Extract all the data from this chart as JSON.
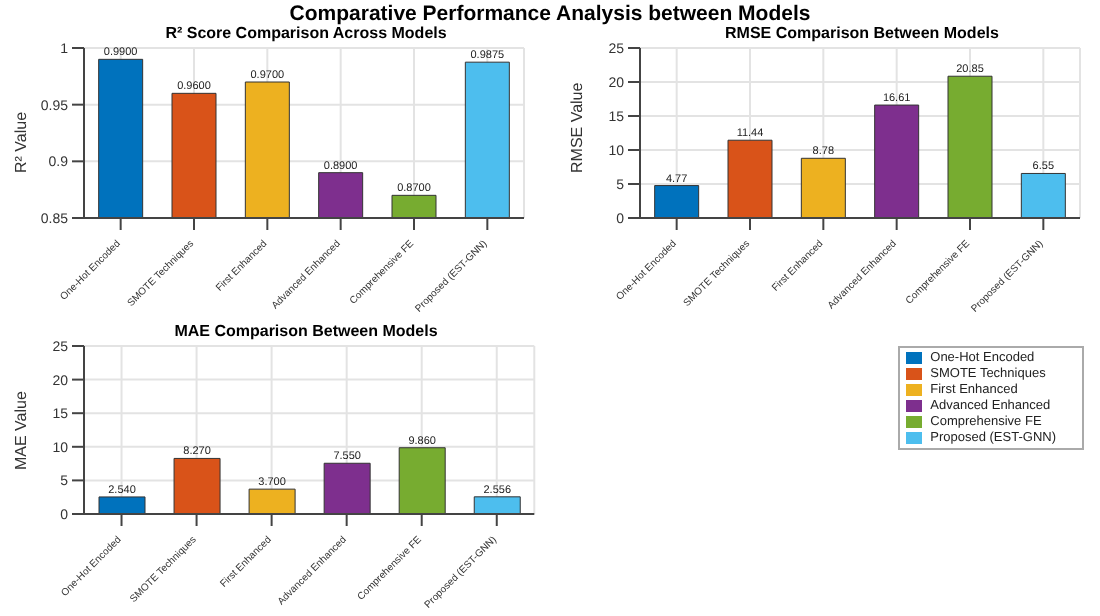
{
  "chart_data": [
    {
      "type": "bar",
      "title": "R² Score Comparison Across Models",
      "ylabel": "R² Value",
      "annotations": [
        "Comparative Performance Analysis between Models"
      ],
      "categories": [
        "One-Hot Encoded",
        "SMOTE Techniques",
        "First Enhanced",
        "Advanced Enhanced",
        "Comprehensive FE",
        "Proposed (EST-GNN)"
      ],
      "values": [
        0.99,
        0.96,
        0.97,
        0.89,
        0.87,
        0.9875
      ],
      "value_labels": [
        "0.9900",
        "0.9600",
        "0.9700",
        "0.8900",
        "0.8700",
        "0.9875"
      ],
      "colors": [
        "#0072bd",
        "#d95319",
        "#edb120",
        "#7e2f8e",
        "#77ac30",
        "#4dbeee"
      ],
      "ylim": [
        0.85,
        1
      ],
      "yticks": [
        0.85,
        0.9,
        0.95,
        1
      ],
      "grid": true
    },
    {
      "type": "bar",
      "title": "RMSE Comparison Between Models",
      "ylabel": "RMSE Value",
      "categories": [
        "One-Hot Encoded",
        "SMOTE Techniques",
        "First Enhanced",
        "Advanced Enhanced",
        "Comprehensive FE",
        "Proposed (EST-GNN)"
      ],
      "values": [
        4.77,
        11.44,
        8.78,
        16.61,
        20.85,
        6.55
      ],
      "data_labels": true,
      "colors": [
        "#0072bd",
        "#d95319",
        "#edb120",
        "#7e2f8e",
        "#77ac30",
        "#4dbeee"
      ],
      "ylim": [
        0,
        25
      ],
      "yticks": [
        0,
        5,
        10,
        15,
        20,
        25
      ],
      "grid": true
    },
    {
      "type": "bar",
      "title": "MAE Comparison Between Models",
      "ylabel": "MAE Value",
      "categories": [
        "One-Hot Encoded",
        "SMOTE Techniques",
        "First Enhanced",
        "Advanced Enhanced",
        "Comprehensive FE",
        "Proposed (EST-GNN)"
      ],
      "stacked": true,
      "series": [
        {
          "name": "One-Hot Encoded",
          "color": "#0072bd",
          "values": [
            2.54,
            null,
            null,
            null,
            null,
            null
          ],
          "value_labels": [
            "2.540",
            null,
            null,
            null,
            null,
            null
          ]
        },
        {
          "name": "SMOTE Techniques",
          "color": "#d95319",
          "values": [
            null,
            8.27,
            null,
            null,
            null,
            null
          ],
          "value_labels": [
            null,
            "8.270",
            null,
            null,
            null,
            null
          ]
        },
        {
          "name": "First Enhanced",
          "color": "#edb120",
          "values": [
            null,
            null,
            3.7,
            null,
            null,
            null
          ],
          "value_labels": [
            null,
            null,
            "3.700",
            null,
            null,
            null
          ]
        },
        {
          "name": "Advanced Enhanced",
          "color": "#7e2f8e",
          "values": [
            null,
            null,
            null,
            7.55,
            null,
            null
          ],
          "value_labels": [
            null,
            null,
            null,
            "7.550",
            null,
            null
          ]
        },
        {
          "name": "Comprehensive FE",
          "color": "#77ac30",
          "values": [
            null,
            null,
            null,
            null,
            9.86,
            null
          ],
          "value_labels": [
            null,
            null,
            null,
            null,
            "9.860",
            null
          ]
        },
        {
          "name": "Proposed (EST-GNN)",
          "color": "#4dbeee",
          "values": [
            null,
            null,
            null,
            null,
            null,
            2.556
          ],
          "value_labels": [
            null,
            null,
            null,
            null,
            null,
            "2.556"
          ]
        }
      ],
      "ylim": [
        0,
        25
      ],
      "yticks": [
        0,
        5,
        10,
        15,
        20,
        25
      ],
      "grid": true,
      "legend": "right"
    }
  ]
}
